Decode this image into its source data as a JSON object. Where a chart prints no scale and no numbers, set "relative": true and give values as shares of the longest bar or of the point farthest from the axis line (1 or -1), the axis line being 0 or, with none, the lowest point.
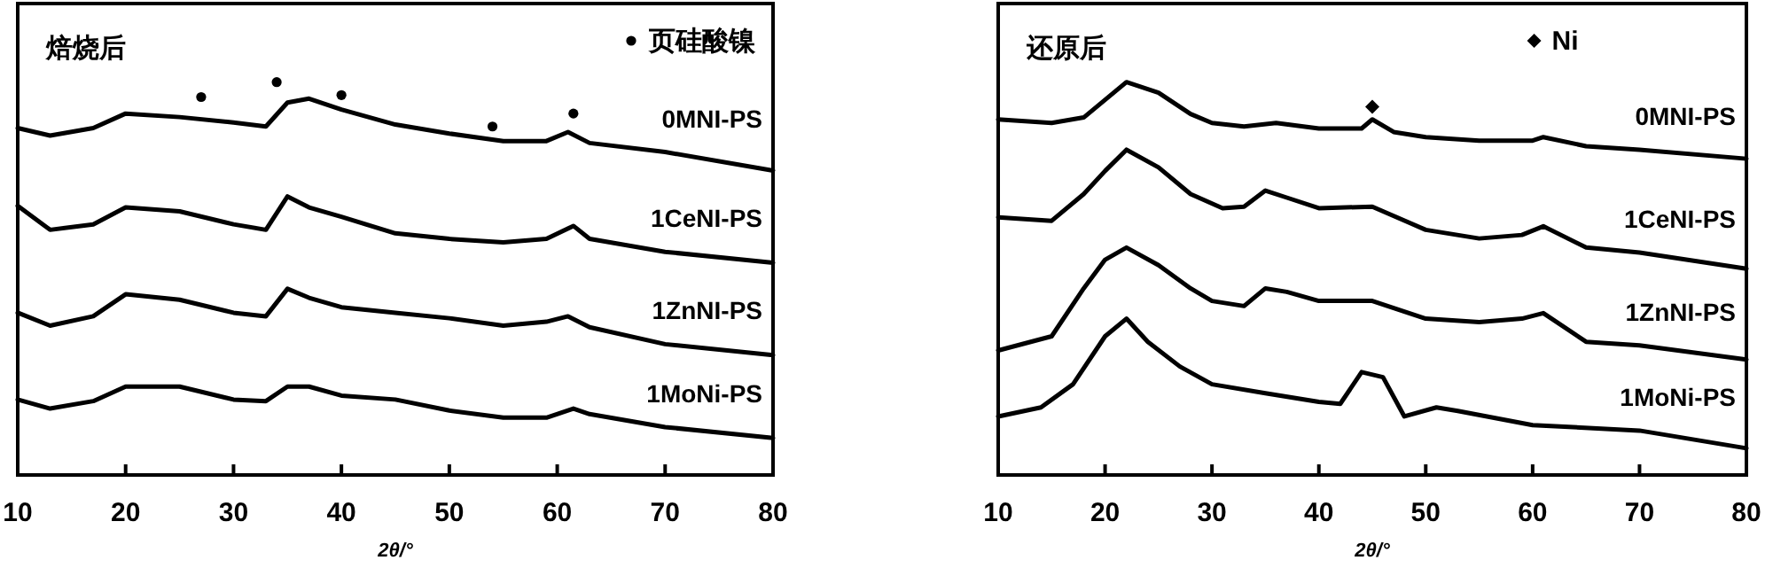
{
  "chart_data": [
    {
      "type": "line",
      "title": "焙烧后",
      "xlabel": "2θ/°",
      "xlim": [
        10,
        80
      ],
      "xticks": [
        10,
        20,
        30,
        40,
        50,
        60,
        70,
        80
      ],
      "relative": true,
      "legend": "top right",
      "series": [
        {
          "name": "0MNI-PS",
          "color": "#000000",
          "x": [
            10,
            13,
            17,
            20,
            25,
            30,
            33,
            35,
            37,
            40,
            45,
            50,
            55,
            59,
            61,
            63,
            70,
            80
          ],
          "values": [
            0.883,
            0.864,
            0.883,
            0.92,
            0.911,
            0.897,
            0.887,
            0.948,
            0.958,
            0.93,
            0.892,
            0.869,
            0.85,
            0.85,
            0.873,
            0.845,
            0.822,
            0.775
          ]
        },
        {
          "name": "1CeNI-PS",
          "color": "#000000",
          "x": [
            10,
            13,
            17,
            20,
            25,
            30,
            33,
            35,
            37,
            40,
            45,
            50,
            55,
            59,
            61.5,
            63,
            70,
            80
          ],
          "values": [
            0.685,
            0.624,
            0.638,
            0.681,
            0.671,
            0.638,
            0.624,
            0.709,
            0.681,
            0.657,
            0.615,
            0.601,
            0.592,
            0.601,
            0.634,
            0.601,
            0.568,
            0.54
          ]
        },
        {
          "name": "1ZnNI-PS",
          "color": "#000000",
          "x": [
            10,
            13,
            17,
            20,
            25,
            30,
            33,
            35,
            37,
            40,
            45,
            50,
            55,
            59,
            61,
            63,
            70,
            80
          ],
          "values": [
            0.413,
            0.38,
            0.404,
            0.46,
            0.446,
            0.413,
            0.404,
            0.474,
            0.451,
            0.427,
            0.413,
            0.399,
            0.38,
            0.39,
            0.404,
            0.376,
            0.333,
            0.305
          ]
        },
        {
          "name": "1MoNi-PS",
          "color": "#000000",
          "x": [
            10,
            13,
            17,
            20,
            25,
            30,
            33,
            35,
            37,
            40,
            45,
            50,
            55,
            59,
            61.5,
            63,
            70,
            80
          ],
          "values": [
            0.192,
            0.169,
            0.188,
            0.225,
            0.225,
            0.192,
            0.188,
            0.225,
            0.225,
            0.202,
            0.192,
            0.164,
            0.146,
            0.146,
            0.169,
            0.155,
            0.122,
            0.094
          ]
        },
        {
          "name": "页硅酸镍",
          "type": "scatter",
          "marker": "circle",
          "color": "#000000",
          "x": [
            27,
            34,
            40,
            54,
            61.5
          ],
          "values": [
            0.962,
            1.0,
            0.967,
            0.887,
            0.92
          ]
        }
      ]
    },
    {
      "type": "line",
      "title": "还原后",
      "xlabel": "2θ/°",
      "xlim": [
        10,
        80
      ],
      "xticks": [
        10,
        20,
        30,
        40,
        50,
        60,
        70,
        80
      ],
      "relative": true,
      "legend": "top",
      "series": [
        {
          "name": "0MNI-PS",
          "color": "#000000",
          "x": [
            10,
            15,
            18,
            20,
            22,
            25,
            28,
            30,
            33,
            36,
            40,
            44,
            45,
            47,
            50,
            55,
            60,
            61,
            65,
            70,
            80
          ],
          "values": [
            0.905,
            0.896,
            0.91,
            0.955,
            1.0,
            0.973,
            0.919,
            0.896,
            0.887,
            0.896,
            0.882,
            0.882,
            0.905,
            0.873,
            0.86,
            0.851,
            0.851,
            0.86,
            0.837,
            0.828,
            0.805
          ]
        },
        {
          "name": "1CeNI-PS",
          "color": "#000000",
          "x": [
            10,
            15,
            18,
            20,
            22,
            25,
            28,
            31,
            33,
            35,
            37,
            40,
            45,
            50,
            55,
            59,
            61,
            65,
            70,
            80
          ],
          "values": [
            0.656,
            0.647,
            0.715,
            0.774,
            0.828,
            0.783,
            0.715,
            0.679,
            0.683,
            0.724,
            0.706,
            0.679,
            0.683,
            0.624,
            0.602,
            0.611,
            0.633,
            0.579,
            0.566,
            0.525
          ]
        },
        {
          "name": "1ZnNI-PS",
          "color": "#000000",
          "x": [
            10,
            15,
            18,
            20,
            22,
            25,
            28,
            30,
            33,
            35,
            37,
            40,
            45,
            50,
            55,
            59,
            61,
            65,
            70,
            80
          ],
          "values": [
            0.317,
            0.353,
            0.475,
            0.548,
            0.579,
            0.534,
            0.475,
            0.443,
            0.43,
            0.475,
            0.466,
            0.443,
            0.443,
            0.398,
            0.389,
            0.398,
            0.412,
            0.339,
            0.33,
            0.294
          ]
        },
        {
          "name": "1MoNi-PS",
          "color": "#000000",
          "x": [
            10,
            14,
            17,
            20,
            22,
            24,
            27,
            30,
            35,
            40,
            42,
            44,
            46,
            48,
            51,
            53,
            60,
            70,
            80
          ],
          "values": [
            0.149,
            0.172,
            0.231,
            0.353,
            0.398,
            0.339,
            0.276,
            0.231,
            0.208,
            0.186,
            0.181,
            0.262,
            0.249,
            0.149,
            0.172,
            0.163,
            0.127,
            0.113,
            0.068
          ]
        },
        {
          "name": "Ni",
          "type": "scatter",
          "marker": "diamond",
          "color": "#000000",
          "x": [
            45
          ],
          "values": [
            0.937
          ]
        }
      ]
    }
  ]
}
